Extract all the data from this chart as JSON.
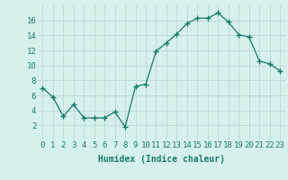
{
  "x": [
    0,
    1,
    2,
    3,
    4,
    5,
    6,
    7,
    8,
    9,
    10,
    11,
    12,
    13,
    14,
    15,
    16,
    17,
    18,
    19,
    20,
    21,
    22,
    23
  ],
  "y": [
    7.0,
    5.8,
    3.2,
    4.8,
    3.0,
    3.0,
    3.0,
    3.8,
    1.8,
    7.2,
    7.5,
    11.9,
    13.0,
    14.2,
    15.6,
    16.3,
    16.3,
    17.0,
    15.8,
    14.1,
    13.8,
    10.6,
    10.2,
    9.3
  ],
  "line_color": "#1a7a6e",
  "marker": "+",
  "marker_size": 4,
  "bg_color": "#d6f0ee",
  "grid_color": "#b8d8d4",
  "xlabel": "Humidex (Indice chaleur)",
  "xlabel_fontsize": 7,
  "tick_fontsize": 6.5,
  "ylim": [
    0,
    18
  ],
  "xlim": [
    -0.5,
    23.5
  ],
  "yticks": [
    2,
    4,
    6,
    8,
    10,
    12,
    14,
    16
  ],
  "xticks": [
    0,
    1,
    2,
    3,
    4,
    5,
    6,
    7,
    8,
    9,
    10,
    11,
    12,
    13,
    14,
    15,
    16,
    17,
    18,
    19,
    20,
    21,
    22,
    23
  ]
}
